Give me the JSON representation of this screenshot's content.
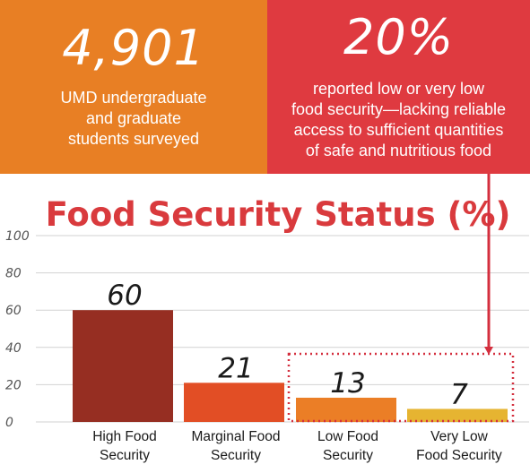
{
  "stats": {
    "left": {
      "value": "4,901",
      "lines": [
        "UMD undergraduate",
        "and graduate",
        "students surveyed"
      ],
      "background": "#e87f24"
    },
    "right": {
      "value": "20%",
      "lines": [
        "reported low or very low",
        "food security—lacking reliable",
        "access to sufficient quantities",
        "of safe and nutritious food"
      ],
      "background": "#df3a40"
    }
  },
  "chart_data": {
    "type": "bar",
    "title": "Food Security Status (%)",
    "categories": [
      [
        "High Food",
        "Security"
      ],
      [
        "Marginal Food",
        "Security"
      ],
      [
        "Low Food",
        "Security"
      ],
      [
        "Very Low",
        "Food Security"
      ]
    ],
    "values": [
      60,
      21,
      13,
      7
    ],
    "data_labels": [
      "60",
      "21",
      "13",
      "7"
    ],
    "colors": [
      "#962e22",
      "#e24e25",
      "#eb7e26",
      "#e6b431"
    ],
    "ylim": [
      0,
      100
    ],
    "yticks": [
      "0",
      "20",
      "40",
      "60",
      "80",
      "100"
    ],
    "grid": true,
    "title_color": "#d93a3d",
    "highlight_color": "#d42f3e",
    "highlight_categories": [
      2,
      3
    ]
  }
}
